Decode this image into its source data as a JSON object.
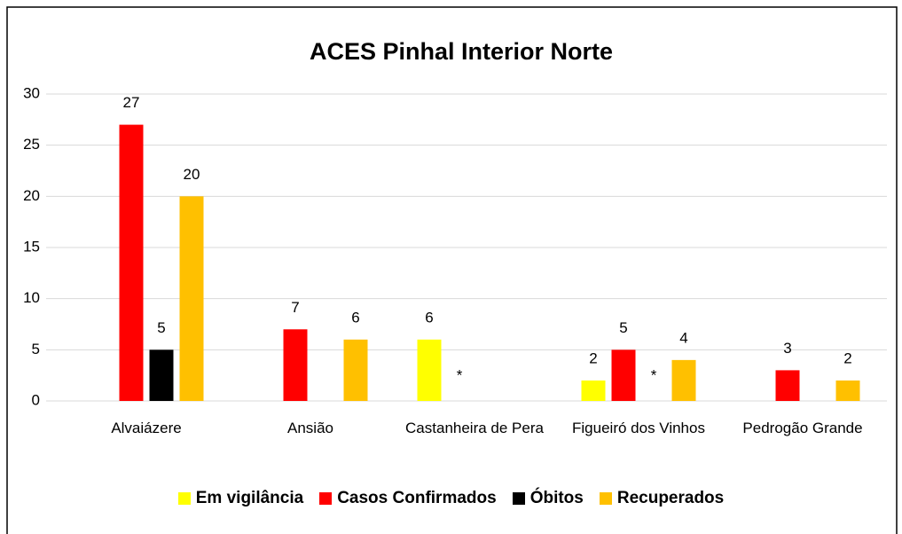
{
  "chart_data": {
    "type": "bar",
    "title": "ACES Pinhal Interior Norte",
    "categories": [
      "Alvaiázere",
      "Ansião",
      "Castanheira de Pera",
      "Figueiró dos Vinhos",
      "Pedrogão Grande"
    ],
    "series": [
      {
        "name": "Em vigilância",
        "color": "#ffff00",
        "values": [
          null,
          null,
          6,
          2,
          null
        ]
      },
      {
        "name": "Casos Confirmados",
        "color": "#ff0000",
        "values": [
          27,
          7,
          null,
          5,
          3
        ]
      },
      {
        "name": "Óbitos",
        "color": "#000000",
        "values": [
          5,
          null,
          null,
          null,
          null
        ]
      },
      {
        "name": "Recuperados",
        "color": "#ffc000",
        "values": [
          20,
          6,
          null,
          4,
          2
        ]
      }
    ],
    "annotations": [
      {
        "text": "*",
        "category": "Castanheira de Pera",
        "series": "Casos Confirmados"
      },
      {
        "text": "*",
        "category": "Figueiró dos Vinhos",
        "series": "Óbitos"
      }
    ],
    "ylim": [
      0,
      30
    ],
    "yticks": [
      0,
      5,
      10,
      15,
      20,
      25,
      30
    ],
    "grid": true,
    "legend": "bottom"
  }
}
